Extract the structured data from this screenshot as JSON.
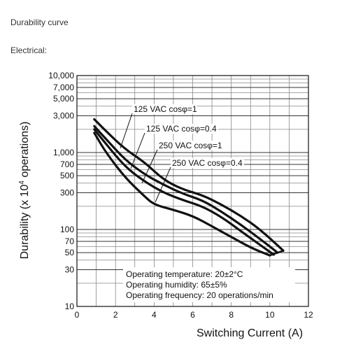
{
  "page": {
    "title": "Durability curve",
    "subtitle": "Electrical:"
  },
  "chart_data": {
    "type": "line",
    "xlabel": "Switching Current (A)",
    "ylabel_main": "Durability  (x 10",
    "ylabel_exp": "4",
    "ylabel_tail": " operations)",
    "xlim": [
      0,
      12
    ],
    "ylim": [
      10,
      10000
    ],
    "y_scale": "log",
    "grid": true,
    "x_ticks": [
      0,
      2,
      4,
      6,
      8,
      10,
      12
    ],
    "x_tick_labels": [
      "0",
      "2",
      "4",
      "6",
      "8",
      "10",
      "12"
    ],
    "y_ticks": [
      10,
      30,
      50,
      70,
      100,
      300,
      500,
      700,
      1000,
      3000,
      5000,
      7000,
      10000
    ],
    "y_tick_labels": [
      "10",
      "30",
      "50",
      "70",
      "100",
      "300",
      "500",
      "700",
      "1,000",
      "3,000",
      "5,000",
      "7,000",
      "10,000"
    ],
    "series": [
      {
        "name": "125 VAC cosφ=1",
        "x": [
          0.9,
          1.5,
          2.5,
          3.5,
          4.5,
          5.5,
          6.5,
          7.5,
          8.5,
          9.5,
          10.7
        ],
        "y": [
          2700,
          1900,
          1100,
          750,
          440,
          330,
          280,
          210,
          150,
          100,
          53
        ]
      },
      {
        "name": "125 VAC cosφ=0.4",
        "x": [
          0.9,
          1.5,
          2.5,
          3.5,
          4.5,
          5.5,
          6.5,
          7.5,
          8.5,
          9.5,
          10.4
        ],
        "y": [
          2200,
          1500,
          800,
          520,
          380,
          290,
          240,
          170,
          115,
          75,
          50
        ]
      },
      {
        "name": "250 VAC cosφ=1",
        "x": [
          0.9,
          1.5,
          2.5,
          3.5,
          4.5,
          5.5,
          6.5,
          7.5,
          8.5,
          9.5,
          10.2
        ],
        "y": [
          2000,
          1300,
          650,
          420,
          300,
          240,
          200,
          145,
          95,
          63,
          47
        ]
      },
      {
        "name": "250 VAC cosφ=0.4",
        "x": [
          0.9,
          1.5,
          2.5,
          3.5,
          4.0,
          5.0,
          6.0,
          7.0,
          8.0,
          9.0,
          10.0
        ],
        "y": [
          1800,
          1000,
          470,
          270,
          210,
          180,
          150,
          110,
          80,
          58,
          46
        ]
      }
    ],
    "labels": [
      {
        "text": "125 VAC cosφ=1"
      },
      {
        "text": "125 VAC cosφ=0.4"
      },
      {
        "text": "250 VAC cosφ=1"
      },
      {
        "text": "250 VAC cosφ=0.4"
      }
    ],
    "notes": [
      "Operating temperature: 20±2°C",
      "Operating humidity: 65±5%",
      "Operating frequency: 20 operations/min"
    ]
  }
}
